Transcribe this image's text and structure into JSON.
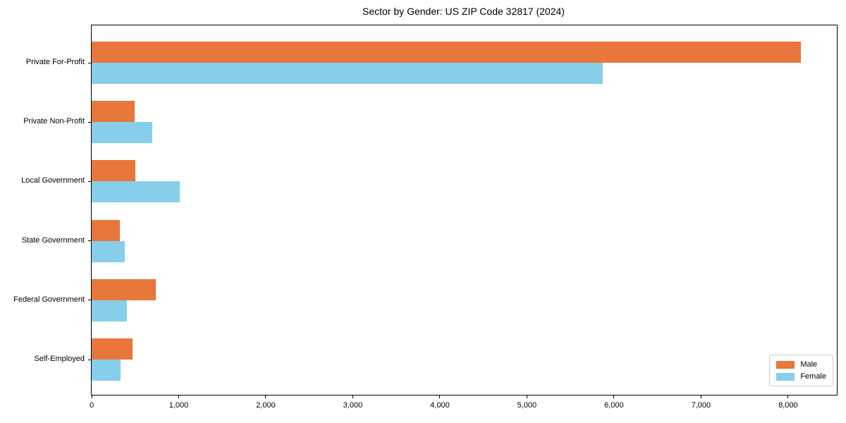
{
  "chart_data": {
    "type": "bar",
    "orientation": "horizontal",
    "title": "Sector by Gender: US ZIP Code 32817 (2024)",
    "categories": [
      "Private For-Profit",
      "Private Non-Profit",
      "Local Government",
      "State Government",
      "Federal Government",
      "Self-Employed"
    ],
    "series": [
      {
        "name": "Male",
        "color": "#e8773b",
        "values": [
          8150,
          490,
          500,
          325,
          740,
          470
        ]
      },
      {
        "name": "Female",
        "color": "#87ceeb",
        "values": [
          5870,
          700,
          1010,
          380,
          405,
          330
        ]
      }
    ],
    "xlabel": "",
    "ylabel": "",
    "xlim": [
      0,
      8560
    ],
    "xticks": [
      0,
      1000,
      2000,
      3000,
      4000,
      5000,
      6000,
      7000,
      8000
    ],
    "grid": false,
    "legend_position": "lower right",
    "background_color": "#ffffff",
    "spine_color": "#000000"
  }
}
